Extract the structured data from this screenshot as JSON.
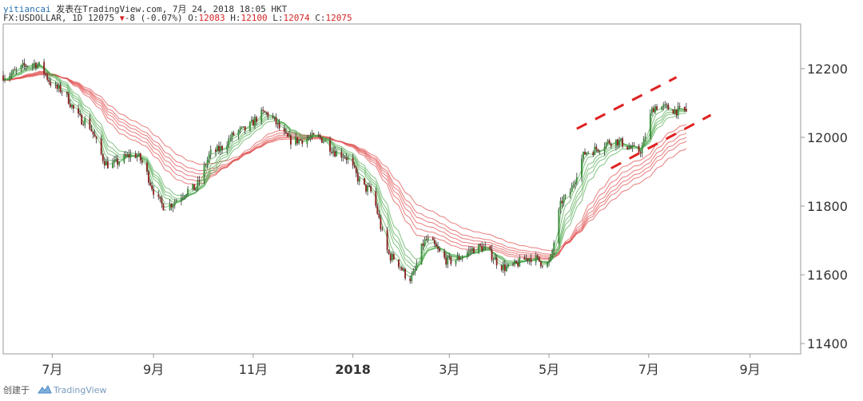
{
  "header": {
    "user": "yitiancai",
    "published": "发表在TradingView.com, 7月 24, 2018 18:05 HKT",
    "symbol_line": "FX:USDOLLAR, 1D 12075",
    "change": "-8 (-0.07%)",
    "o_label": "O:",
    "o_value": "12083",
    "h_label": "H:",
    "h_value": "12100",
    "l_label": "L:",
    "l_value": "12074",
    "c_label": "C:",
    "c_value": "12075"
  },
  "footer": {
    "created_by": "创建于",
    "brand": "TradingView"
  },
  "colors": {
    "up": "#3a8c3a",
    "down": "#8b2020",
    "ribbon_fast": "#4aa84a",
    "ribbon_slow": "#e05050",
    "trendline": "#e02020",
    "axis": "#999999"
  },
  "chart_data": {
    "type": "candlestick",
    "y_ticks": [
      11400,
      11600,
      11800,
      12000,
      12200
    ],
    "y_range": [
      11370,
      12330
    ],
    "x_ticks": [
      {
        "label": "7月",
        "date": "2017-07-01"
      },
      {
        "label": "9月",
        "date": "2017-09-01"
      },
      {
        "label": "11月",
        "date": "2017-11-01"
      },
      {
        "label": "2018",
        "date": "2018-01-01",
        "bold": true
      },
      {
        "label": "3月",
        "date": "2018-03-01"
      },
      {
        "label": "5月",
        "date": "2018-05-01"
      },
      {
        "label": "7月",
        "date": "2018-07-01"
      },
      {
        "label": "9月",
        "date": "2018-09-01"
      }
    ],
    "x_range": [
      "2017-06-01",
      "2018-10-02"
    ],
    "price_path": [
      [
        "2017-06-01",
        12180
      ],
      [
        "2017-06-20",
        12215
      ],
      [
        "2017-07-05",
        12140
      ],
      [
        "2017-07-20",
        12050
      ],
      [
        "2017-08-05",
        11920
      ],
      [
        "2017-08-20",
        11950
      ],
      [
        "2017-09-08",
        11800
      ],
      [
        "2017-09-25",
        11850
      ],
      [
        "2017-10-08",
        11960
      ],
      [
        "2017-10-25",
        12020
      ],
      [
        "2017-11-08",
        12070
      ],
      [
        "2017-11-25",
        11990
      ],
      [
        "2017-12-10",
        12000
      ],
      [
        "2017-12-25",
        11950
      ],
      [
        "2018-01-10",
        11850
      ],
      [
        "2018-01-25",
        11650
      ],
      [
        "2018-02-05",
        11590
      ],
      [
        "2018-02-15",
        11700
      ],
      [
        "2018-03-01",
        11640
      ],
      [
        "2018-03-20",
        11680
      ],
      [
        "2018-04-05",
        11620
      ],
      [
        "2018-04-20",
        11650
      ],
      [
        "2018-04-30",
        11630
      ],
      [
        "2018-05-10",
        11820
      ],
      [
        "2018-05-25",
        11960
      ],
      [
        "2018-06-10",
        11990
      ],
      [
        "2018-06-25",
        11960
      ],
      [
        "2018-07-05",
        12090
      ],
      [
        "2018-07-24",
        12075
      ]
    ],
    "ribbon": {
      "fast_periods": [
        3,
        5,
        8,
        10,
        12,
        15
      ],
      "slow_periods": [
        30,
        35,
        40,
        45,
        50,
        60
      ]
    },
    "channel_upper": [
      [
        "2018-05-18",
        12025
      ],
      [
        "2018-07-18",
        12175
      ]
    ],
    "channel_lower": [
      [
        "2018-06-08",
        11910
      ],
      [
        "2018-08-08",
        12065
      ]
    ]
  }
}
